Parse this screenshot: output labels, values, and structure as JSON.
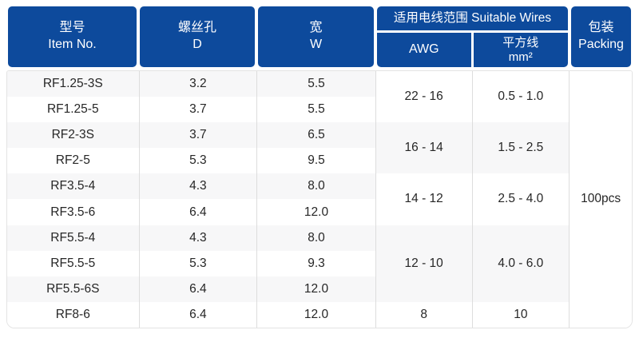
{
  "accent_color": "#0d4a9c",
  "stripe_color": "#f7f7f8",
  "header": {
    "item_no": {
      "zh": "型号",
      "en": "Item No."
    },
    "screw_hole": {
      "zh": "螺丝孔",
      "en": "D"
    },
    "width": {
      "zh": "宽",
      "en": "W"
    },
    "suitable_wires": {
      "label": "适用电线范围 Suitable Wires",
      "awg": "AWG",
      "mm2_zh": "平方线",
      "mm2_en": "mm²"
    },
    "packing": {
      "zh": "包装",
      "en": "Packing"
    }
  },
  "rows": [
    {
      "item": "RF1.25-3S",
      "d": "3.2",
      "w": "5.5"
    },
    {
      "item": "RF1.25-5",
      "d": "3.7",
      "w": "5.5"
    },
    {
      "item": "RF2-3S",
      "d": "3.7",
      "w": "6.5"
    },
    {
      "item": "RF2-5",
      "d": "5.3",
      "w": "9.5"
    },
    {
      "item": "RF3.5-4",
      "d": "4.3",
      "w": "8.0"
    },
    {
      "item": "RF3.5-6",
      "d": "6.4",
      "w": "12.0"
    },
    {
      "item": "RF5.5-4",
      "d": "4.3",
      "w": "8.0"
    },
    {
      "item": "RF5.5-5",
      "d": "5.3",
      "w": "9.3"
    },
    {
      "item": "RF5.5-6S",
      "d": "6.4",
      "w": "12.0"
    },
    {
      "item": "RF8-6",
      "d": "6.4",
      "w": "12.0"
    }
  ],
  "wire_groups": [
    {
      "awg": "22 - 16",
      "mm2": "0.5 - 1.0",
      "rows_spanned": 2
    },
    {
      "awg": "16 - 14",
      "mm2": "1.5 - 2.5",
      "rows_spanned": 2
    },
    {
      "awg": "14 - 12",
      "mm2": "2.5 - 4.0",
      "rows_spanned": 2
    },
    {
      "awg": "12 - 10",
      "mm2": "4.0 - 6.0",
      "rows_spanned": 3
    },
    {
      "awg": "8",
      "mm2": "10",
      "rows_spanned": 1
    }
  ],
  "packing_value": "100pcs"
}
